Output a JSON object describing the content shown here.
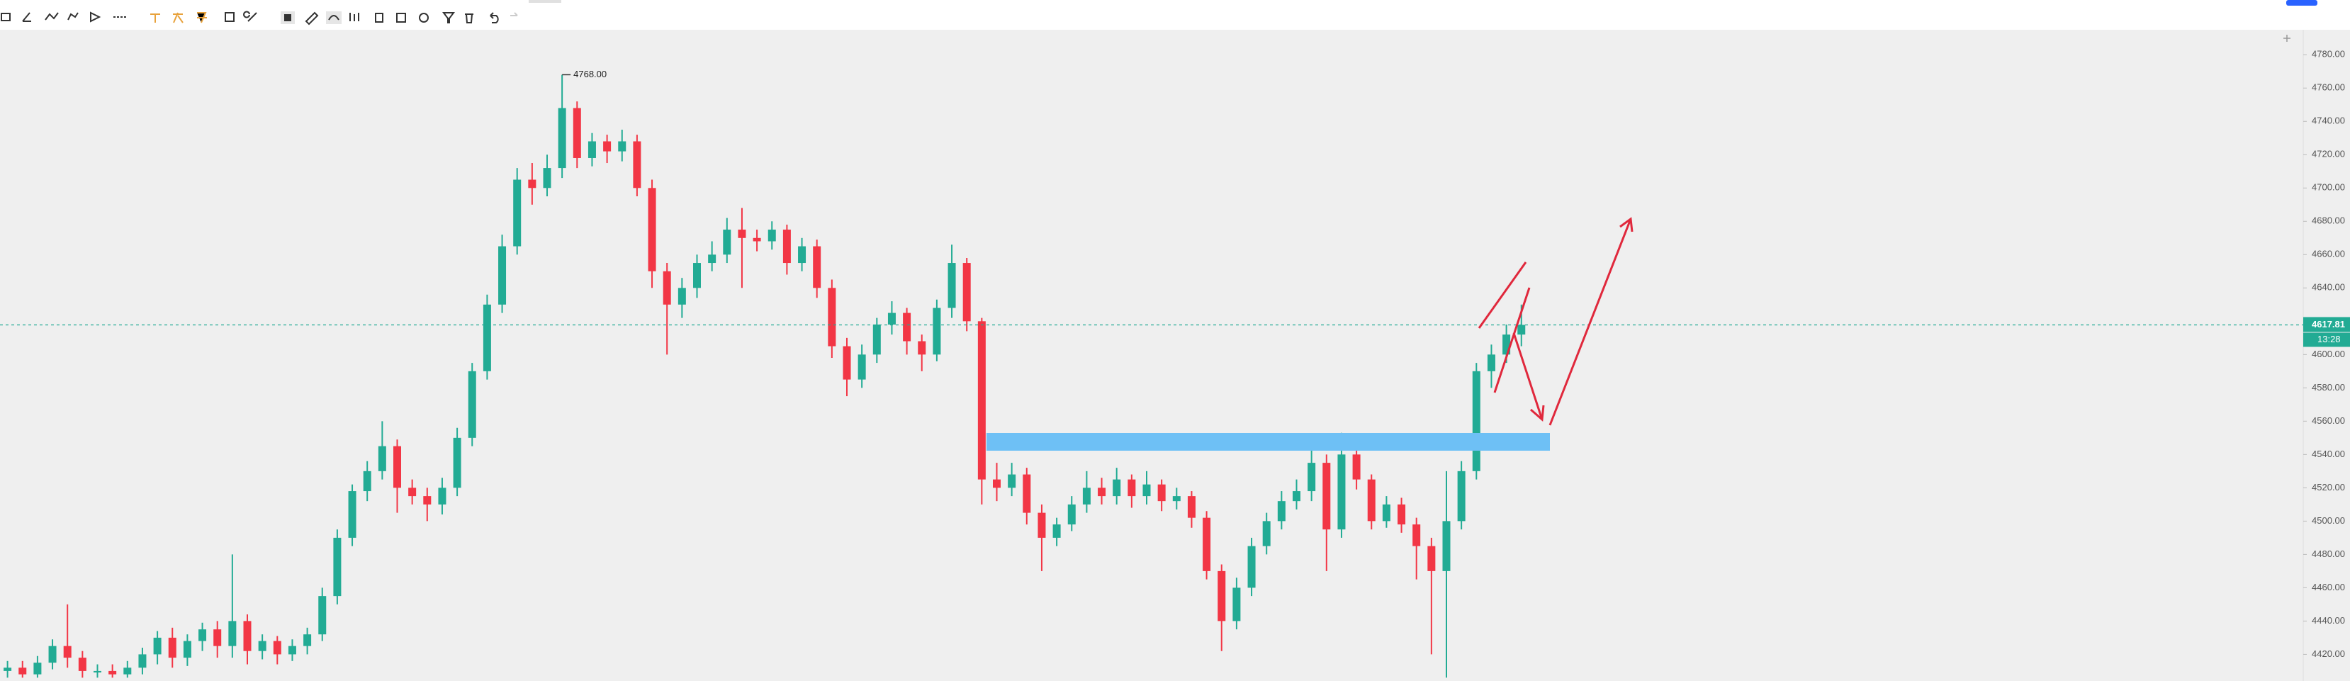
{
  "chart_data": {
    "type": "candlestick",
    "up_color": "#22ab94",
    "down_color": "#f23645",
    "ylim": [
      4404,
      4795
    ],
    "yticks": [
      {
        "value": 4420,
        "label": "4420.00"
      },
      {
        "value": 4440,
        "label": "4440.00"
      },
      {
        "value": 4460,
        "label": "4460.00"
      },
      {
        "value": 4480,
        "label": "4480.00"
      },
      {
        "value": 4500,
        "label": "4500.00"
      },
      {
        "value": 4520,
        "label": "4520.00"
      },
      {
        "value": 4540,
        "label": "4540.00"
      },
      {
        "value": 4560,
        "label": "4560.00"
      },
      {
        "value": 4580,
        "label": "4580.00"
      },
      {
        "value": 4600,
        "label": "4600.00"
      },
      {
        "value": 4620,
        "label": "4620.00"
      },
      {
        "value": 4640,
        "label": "4640.00"
      },
      {
        "value": 4660,
        "label": "4660.00"
      },
      {
        "value": 4680,
        "label": "4680.00"
      },
      {
        "value": 4700,
        "label": "4700.00"
      },
      {
        "value": 4720,
        "label": "4720.00"
      },
      {
        "value": 4740,
        "label": "4740.00"
      },
      {
        "value": 4760,
        "label": "4760.00"
      },
      {
        "value": 4780,
        "label": "4780.00"
      }
    ],
    "open": [
      4410,
      4412,
      4408,
      4415,
      4425,
      4418,
      4410,
      4410,
      4408,
      4412,
      4420,
      4430,
      4418,
      4428,
      4435,
      4425,
      4440,
      4422,
      4428,
      4420,
      4425,
      4432,
      4455,
      4490,
      4518,
      4530,
      4545,
      4520,
      4515,
      4510,
      4520,
      4550,
      4590,
      4630,
      4665,
      4705,
      4700,
      4712,
      4748,
      4718,
      4728,
      4722,
      4728,
      4700,
      4650,
      4630,
      4640,
      4655,
      4660,
      4675,
      4670,
      4668,
      4675,
      4655,
      4665,
      4640,
      4605,
      4585,
      4600,
      4618,
      4625,
      4608,
      4600,
      4628,
      4655,
      4620,
      4525,
      4520,
      4528,
      4505,
      4490,
      4498,
      4510,
      4520,
      4515,
      4525,
      4515,
      4522,
      4512,
      4515,
      4502,
      4470,
      4440,
      4460,
      4485,
      4500,
      4512,
      4518,
      4535,
      4495,
      4540,
      4525,
      4500,
      4510,
      4498,
      4485,
      4470,
      4500,
      4530,
      4590,
      4600,
      4612
    ],
    "high": [
      4416,
      4416,
      4419,
      4429,
      4450,
      4422,
      4414,
      4414,
      4416,
      4424,
      4434,
      4436,
      4432,
      4439,
      4440,
      4480,
      4444,
      4432,
      4431,
      4429,
      4436,
      4460,
      4495,
      4522,
      4536,
      4560,
      4549,
      4525,
      4520,
      4526,
      4556,
      4595,
      4636,
      4672,
      4712,
      4715,
      4720,
      4768,
      4752,
      4733,
      4732,
      4735,
      4732,
      4705,
      4655,
      4646,
      4660,
      4668,
      4682,
      4688,
      4675,
      4680,
      4678,
      4670,
      4669,
      4645,
      4610,
      4606,
      4622,
      4632,
      4628,
      4612,
      4633,
      4666,
      4658,
      4622,
      4535,
      4535,
      4532,
      4510,
      4502,
      4515,
      4530,
      4526,
      4532,
      4528,
      4530,
      4525,
      4520,
      4518,
      4506,
      4474,
      4466,
      4490,
      4505,
      4518,
      4525,
      4550,
      4540,
      4553,
      4545,
      4528,
      4515,
      4514,
      4502,
      4490,
      4530,
      4536,
      4595,
      4606,
      4618,
      4630
    ],
    "low": [
      4406,
      4406,
      4406,
      4411,
      4412,
      4406,
      4406,
      4406,
      4406,
      4408,
      4414,
      4412,
      4413,
      4422,
      4418,
      4418,
      4414,
      4417,
      4414,
      4416,
      4420,
      4428,
      4450,
      4485,
      4512,
      4525,
      4505,
      4510,
      4500,
      4504,
      4515,
      4545,
      4585,
      4625,
      4660,
      4690,
      4695,
      4706,
      4712,
      4713,
      4715,
      4716,
      4695,
      4640,
      4600,
      4622,
      4634,
      4650,
      4655,
      4640,
      4662,
      4663,
      4648,
      4650,
      4634,
      4598,
      4575,
      4580,
      4595,
      4612,
      4600,
      4590,
      4596,
      4622,
      4614,
      4510,
      4512,
      4515,
      4498,
      4470,
      4485,
      4494,
      4505,
      4510,
      4510,
      4508,
      4510,
      4506,
      4507,
      4496,
      4465,
      4422,
      4435,
      4455,
      4480,
      4495,
      4507,
      4512,
      4470,
      4490,
      4519,
      4495,
      4496,
      4493,
      4465,
      4420,
      4406,
      4495,
      4525,
      4580,
      4595,
      4605
    ],
    "close": [
      4412,
      4408,
      4415,
      4425,
      4418,
      4410,
      4410,
      4408,
      4412,
      4420,
      4430,
      4418,
      4428,
      4435,
      4425,
      4440,
      4422,
      4428,
      4420,
      4425,
      4432,
      4455,
      4490,
      4518,
      4530,
      4545,
      4520,
      4515,
      4510,
      4520,
      4550,
      4590,
      4630,
      4665,
      4705,
      4700,
      4712,
      4748,
      4718,
      4728,
      4722,
      4728,
      4700,
      4650,
      4630,
      4640,
      4655,
      4660,
      4675,
      4670,
      4668,
      4675,
      4655,
      4665,
      4640,
      4605,
      4585,
      4600,
      4618,
      4625,
      4608,
      4600,
      4628,
      4655,
      4620,
      4525,
      4520,
      4528,
      4505,
      4490,
      4498,
      4510,
      4520,
      4515,
      4525,
      4515,
      4522,
      4512,
      4515,
      4502,
      4470,
      4440,
      4460,
      4485,
      4500,
      4512,
      4518,
      4535,
      4495,
      4540,
      4525,
      4500,
      4510,
      4498,
      4485,
      4470,
      4500,
      4530,
      4590,
      4600,
      4612,
      4617.81
    ],
    "high_annotation": "4768.00",
    "countdown": "13:28"
  }
}
